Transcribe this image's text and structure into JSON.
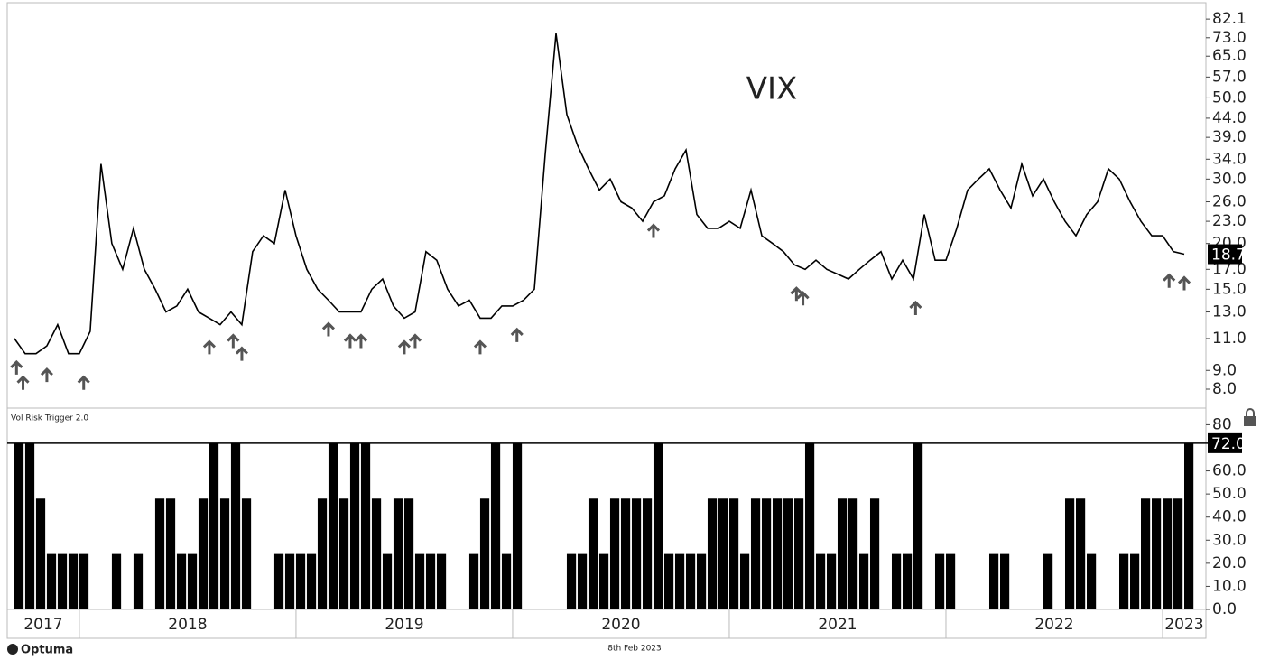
{
  "chart_data": [
    {
      "type": "line",
      "title": "VIX",
      "color": "#000000",
      "log_scale": true,
      "xlim": [
        2017.667,
        2023.2
      ],
      "ylim": [
        7.1,
        91
      ],
      "yticks": [
        82.1,
        {
          "value": 73,
          "label": "73.0"
        },
        {
          "value": 65,
          "label": "65.0"
        },
        {
          "value": 57,
          "label": "57.0"
        },
        {
          "value": 50,
          "label": "50.0"
        },
        {
          "value": 44,
          "label": "44.0"
        },
        {
          "value": 39,
          "label": "39.0"
        },
        {
          "value": 34,
          "label": "34.0"
        },
        {
          "value": 30,
          "label": "30.0"
        },
        {
          "value": 26,
          "label": "26.0"
        },
        {
          "value": 23,
          "label": "23.0"
        },
        {
          "value": 20,
          "label": "20.0"
        },
        {
          "value": 17,
          "label": "17.0"
        },
        {
          "value": 15,
          "label": "15.0"
        },
        {
          "value": 13,
          "label": "13.0"
        },
        {
          "value": 11,
          "label": "11.0"
        },
        {
          "value": 9,
          "label": "9.0"
        },
        {
          "value": 8,
          "label": "8.0"
        }
      ],
      "x": [
        2017.7,
        2017.75,
        2017.8,
        2017.85,
        2017.9,
        2017.95,
        2018.0,
        2018.05,
        2018.1,
        2018.15,
        2018.2,
        2018.25,
        2018.3,
        2018.35,
        2018.4,
        2018.45,
        2018.5,
        2018.55,
        2018.6,
        2018.65,
        2018.7,
        2018.75,
        2018.8,
        2018.85,
        2018.9,
        2018.95,
        2019.0,
        2019.05,
        2019.1,
        2019.15,
        2019.2,
        2019.25,
        2019.3,
        2019.35,
        2019.4,
        2019.45,
        2019.5,
        2019.55,
        2019.6,
        2019.65,
        2019.7,
        2019.75,
        2019.8,
        2019.85,
        2019.9,
        2019.95,
        2020.0,
        2020.05,
        2020.1,
        2020.15,
        2020.2,
        2020.25,
        2020.3,
        2020.35,
        2020.4,
        2020.45,
        2020.5,
        2020.55,
        2020.6,
        2020.65,
        2020.7,
        2020.75,
        2020.8,
        2020.85,
        2020.9,
        2020.95,
        2021.0,
        2021.05,
        2021.1,
        2021.15,
        2021.2,
        2021.25,
        2021.3,
        2021.35,
        2021.4,
        2021.45,
        2021.5,
        2021.55,
        2021.6,
        2021.65,
        2021.7,
        2021.75,
        2021.8,
        2021.85,
        2021.9,
        2021.95,
        2022.0,
        2022.05,
        2022.1,
        2022.15,
        2022.2,
        2022.25,
        2022.3,
        2022.35,
        2022.4,
        2022.45,
        2022.5,
        2022.55,
        2022.6,
        2022.65,
        2022.7,
        2022.75,
        2022.8,
        2022.85,
        2022.9,
        2022.95,
        2023.0,
        2023.05,
        2023.1
      ],
      "values": [
        11,
        10,
        10,
        10.5,
        12,
        10,
        10,
        11.5,
        33,
        20,
        17,
        22,
        17,
        15,
        13,
        13.5,
        15,
        13,
        12.5,
        12,
        13,
        12,
        19,
        21,
        20,
        28,
        21,
        17,
        15,
        14,
        13,
        13,
        13,
        15,
        16,
        13.5,
        12.5,
        13,
        19,
        18,
        15,
        13.5,
        14,
        12.5,
        12.5,
        13.5,
        13.5,
        14,
        15,
        35,
        75,
        45,
        37,
        32,
        28,
        30,
        26,
        25,
        23,
        26,
        27,
        32,
        36,
        24,
        22,
        22,
        23,
        22,
        28,
        21,
        20,
        19,
        17.5,
        17,
        18,
        17,
        16.5,
        16,
        17,
        18,
        19,
        16,
        18,
        16,
        24,
        18,
        18,
        22,
        28,
        30,
        32,
        28,
        25,
        33,
        27,
        30,
        26,
        23,
        21,
        24,
        26,
        32,
        30,
        26,
        23,
        21,
        21,
        19,
        18.7
      ],
      "signal_x": [
        2017.71,
        2017.74,
        2017.85,
        2018.02,
        2018.6,
        2018.71,
        2018.75,
        2019.15,
        2019.25,
        2019.3,
        2019.5,
        2019.55,
        2019.85,
        2020.02,
        2020.65,
        2021.31,
        2021.34,
        2021.86,
        2023.03,
        2023.1
      ],
      "current": {
        "value": 18.7,
        "label": "18.7"
      }
    },
    {
      "type": "bar",
      "title": "Vol Risk Trigger 2.0",
      "color": "#000000",
      "xlim": [
        2017.667,
        2023.2
      ],
      "ylim": [
        0,
        87.2
      ],
      "xticks": [
        2017,
        2018,
        2019,
        2020,
        2021,
        2022,
        2023
      ],
      "yticks": [
        {
          "value": 0,
          "label": "0.0"
        },
        {
          "value": 10,
          "label": "10.0"
        },
        {
          "value": 20,
          "label": "20.0"
        },
        {
          "value": 30,
          "label": "30.0"
        },
        {
          "value": 40,
          "label": "40.0"
        },
        {
          "value": 50,
          "label": "50.0"
        },
        {
          "value": 60,
          "label": "60.0"
        },
        80
      ],
      "threshold": 72,
      "x": [
        2017.7,
        2017.75,
        2017.8,
        2017.85,
        2017.9,
        2017.95,
        2018.0,
        2018.05,
        2018.1,
        2018.15,
        2018.2,
        2018.25,
        2018.3,
        2018.35,
        2018.4,
        2018.45,
        2018.5,
        2018.55,
        2018.6,
        2018.65,
        2018.7,
        2018.75,
        2018.8,
        2018.85,
        2018.9,
        2018.95,
        2019.0,
        2019.05,
        2019.1,
        2019.15,
        2019.2,
        2019.25,
        2019.3,
        2019.35,
        2019.4,
        2019.45,
        2019.5,
        2019.55,
        2019.6,
        2019.65,
        2019.7,
        2019.75,
        2019.8,
        2019.85,
        2019.9,
        2019.95,
        2020.0,
        2020.05,
        2020.1,
        2020.15,
        2020.2,
        2020.25,
        2020.3,
        2020.35,
        2020.4,
        2020.45,
        2020.5,
        2020.55,
        2020.6,
        2020.65,
        2020.7,
        2020.75,
        2020.8,
        2020.85,
        2020.9,
        2020.95,
        2021.0,
        2021.05,
        2021.1,
        2021.15,
        2021.2,
        2021.25,
        2021.3,
        2021.35,
        2021.4,
        2021.45,
        2021.5,
        2021.55,
        2021.6,
        2021.65,
        2021.7,
        2021.75,
        2021.8,
        2021.85,
        2021.9,
        2021.95,
        2022.0,
        2022.05,
        2022.1,
        2022.15,
        2022.2,
        2022.25,
        2022.3,
        2022.35,
        2022.4,
        2022.45,
        2022.5,
        2022.55,
        2022.6,
        2022.65,
        2022.7,
        2022.75,
        2022.8,
        2022.85,
        2022.9,
        2022.95,
        2023.0,
        2023.05,
        2023.1
      ],
      "values": [
        72,
        72,
        48,
        24,
        24,
        24,
        24,
        0,
        0,
        24,
        0,
        24,
        0,
        48,
        48,
        24,
        24,
        48,
        72,
        48,
        72,
        48,
        0,
        0,
        24,
        24,
        24,
        24,
        48,
        72,
        48,
        72,
        72,
        48,
        24,
        48,
        48,
        24,
        24,
        24,
        0,
        0,
        24,
        48,
        72,
        24,
        72,
        0,
        0,
        0,
        0,
        24,
        24,
        48,
        24,
        48,
        48,
        48,
        48,
        72,
        24,
        24,
        24,
        24,
        48,
        48,
        48,
        24,
        48,
        48,
        48,
        48,
        48,
        72,
        24,
        24,
        48,
        48,
        24,
        48,
        0,
        24,
        24,
        72,
        0,
        24,
        24,
        0,
        0,
        0,
        24,
        24,
        0,
        0,
        0,
        24,
        0,
        48,
        48,
        24,
        0,
        0,
        24,
        24,
        48,
        48,
        48,
        48,
        72
      ],
      "current": {
        "value": 72,
        "label": "72.0"
      }
    }
  ],
  "footer": {
    "brand": "Optuma",
    "date": "8th Feb 2023"
  }
}
